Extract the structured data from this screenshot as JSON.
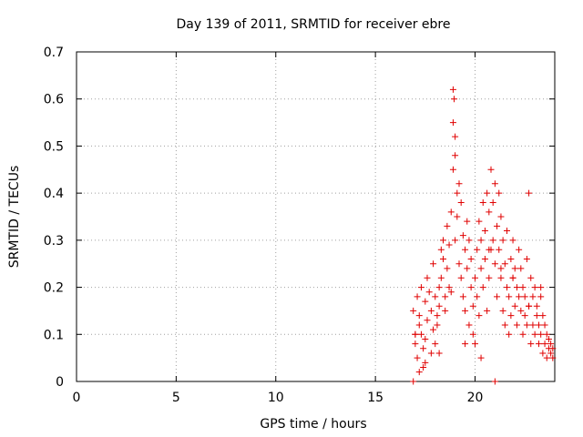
{
  "chart_data": {
    "type": "scatter",
    "title": "Day 139 of 2011, SRMTID for receiver ebre",
    "xlabel": "GPS time / hours",
    "ylabel": "SRMTID / TECUs",
    "xlim": [
      0,
      24
    ],
    "ylim": [
      0,
      0.7
    ],
    "xticks": [
      0,
      5,
      10,
      15,
      20
    ],
    "yticks": [
      0,
      0.1,
      0.2,
      0.3,
      0.4,
      0.5,
      0.6,
      0.7
    ],
    "grid": true,
    "marker": "+",
    "color": "#e00000",
    "series": [
      {
        "name": "SRMTID",
        "x": [
          16.9,
          16.9,
          17.0,
          17.1,
          17.0,
          17.2,
          17.1,
          17.3,
          17.2,
          17.4,
          17.3,
          17.5,
          17.4,
          17.2,
          17.6,
          17.7,
          17.5,
          17.8,
          17.6,
          17.9,
          17.8,
          18.0,
          17.9,
          18.1,
          18.0,
          18.2,
          18.1,
          18.3,
          18.2,
          18.4,
          18.3,
          18.5,
          18.4,
          18.6,
          18.5,
          18.6,
          18.7,
          18.7,
          18.8,
          18.8,
          18.9,
          18.9,
          18.9,
          19.0,
          19.0,
          18.95,
          19.1,
          19.0,
          19.1,
          19.2,
          19.2,
          19.3,
          19.3,
          19.4,
          19.4,
          19.5,
          19.5,
          19.6,
          19.6,
          19.7,
          19.7,
          19.8,
          19.8,
          19.9,
          19.9,
          20.0,
          20.0,
          20.1,
          20.1,
          20.2,
          20.2,
          20.3,
          20.3,
          20.4,
          20.4,
          20.5,
          20.5,
          20.6,
          20.6,
          20.7,
          20.7,
          20.8,
          20.8,
          20.9,
          20.9,
          21.0,
          21.0,
          21.0,
          21.1,
          21.1,
          21.2,
          21.2,
          21.3,
          21.3,
          21.4,
          21.4,
          21.5,
          21.5,
          21.6,
          21.6,
          21.7,
          21.7,
          21.8,
          21.8,
          21.9,
          21.9,
          22.0,
          22.0,
          22.1,
          22.1,
          22.2,
          22.2,
          22.3,
          22.3,
          22.4,
          22.4,
          22.5,
          22.5,
          22.6,
          22.6,
          22.7,
          22.7,
          22.8,
          22.8,
          22.9,
          22.9,
          23.0,
          23.0,
          23.1,
          23.1,
          23.2,
          23.2,
          23.3,
          23.3,
          23.4,
          23.4,
          23.5,
          23.5,
          23.6,
          23.6,
          23.7,
          23.7,
          23.8,
          23.8,
          23.9,
          23.9,
          20.7,
          21.3,
          21.9,
          18.2,
          17.5,
          19.5,
          22.7,
          20.3,
          23.3,
          17.0
        ],
        "y": [
          0.0,
          0.15,
          0.1,
          0.18,
          0.08,
          0.12,
          0.05,
          0.2,
          0.14,
          0.03,
          0.1,
          0.17,
          0.07,
          0.02,
          0.13,
          0.19,
          0.09,
          0.15,
          0.22,
          0.11,
          0.06,
          0.18,
          0.25,
          0.14,
          0.08,
          0.2,
          0.12,
          0.28,
          0.16,
          0.3,
          0.22,
          0.18,
          0.26,
          0.24,
          0.15,
          0.33,
          0.2,
          0.29,
          0.36,
          0.19,
          0.55,
          0.62,
          0.45,
          0.48,
          0.52,
          0.6,
          0.4,
          0.3,
          0.35,
          0.42,
          0.25,
          0.38,
          0.22,
          0.31,
          0.18,
          0.28,
          0.15,
          0.34,
          0.24,
          0.3,
          0.12,
          0.26,
          0.2,
          0.16,
          0.1,
          0.22,
          0.08,
          0.18,
          0.28,
          0.14,
          0.34,
          0.24,
          0.3,
          0.38,
          0.2,
          0.26,
          0.32,
          0.15,
          0.4,
          0.22,
          0.36,
          0.28,
          0.45,
          0.3,
          0.38,
          0.25,
          0.0,
          0.42,
          0.33,
          0.18,
          0.4,
          0.28,
          0.35,
          0.22,
          0.3,
          0.15,
          0.25,
          0.12,
          0.2,
          0.32,
          0.18,
          0.1,
          0.26,
          0.14,
          0.22,
          0.3,
          0.16,
          0.24,
          0.12,
          0.2,
          0.18,
          0.28,
          0.15,
          0.24,
          0.1,
          0.2,
          0.14,
          0.18,
          0.12,
          0.26,
          0.16,
          0.4,
          0.22,
          0.08,
          0.18,
          0.12,
          0.2,
          0.1,
          0.16,
          0.14,
          0.08,
          0.12,
          0.18,
          0.1,
          0.06,
          0.14,
          0.08,
          0.12,
          0.05,
          0.1,
          0.07,
          0.09,
          0.06,
          0.08,
          0.05,
          0.07,
          0.28,
          0.24,
          0.22,
          0.06,
          0.04,
          0.08,
          0.16,
          0.05,
          0.2,
          0.1
        ]
      }
    ]
  }
}
